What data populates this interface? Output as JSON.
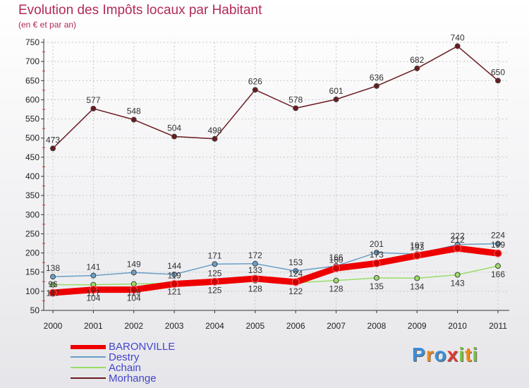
{
  "chart_data": {
    "type": "line",
    "title": "Evolution des Impôts locaux par Habitant",
    "subtitle": "(en € et par an)",
    "categories": [
      "2000",
      "2001",
      "2002",
      "2003",
      "2004",
      "2005",
      "2006",
      "2007",
      "2008",
      "2009",
      "2010",
      "2011"
    ],
    "ylim": [
      50,
      750
    ],
    "yticks": [
      50,
      100,
      150,
      200,
      250,
      300,
      350,
      400,
      450,
      500,
      550,
      600,
      650,
      700,
      750
    ],
    "series": [
      {
        "name": "Morhange",
        "color": "#6b1a1f",
        "values": [
          473,
          577,
          548,
          504,
          498,
          626,
          578,
          601,
          636,
          682,
          740,
          650
        ]
      },
      {
        "name": "Destry",
        "color": "#6a9fc7",
        "values": [
          138,
          141,
          149,
          144,
          171,
          172,
          153,
          166,
          201,
          197,
          222,
          224
        ]
      },
      {
        "name": "Achain",
        "color": "#99dd66",
        "values": [
          117,
          117,
          119,
          121,
          125,
          128,
          122,
          128,
          135,
          134,
          143,
          166
        ]
      },
      {
        "name": "BARONVILLE",
        "color": "#ee0000",
        "values": [
          96,
          104,
          104,
          119,
          125,
          133,
          124,
          160,
          173,
          193,
          212,
          199
        ]
      }
    ],
    "labels": [
      {
        "text": "473",
        "x": "2000",
        "y": 473,
        "pos": "above"
      },
      {
        "text": "577",
        "x": "2001",
        "y": 577,
        "pos": "above"
      },
      {
        "text": "548",
        "x": "2002",
        "y": 548,
        "pos": "above"
      },
      {
        "text": "504",
        "x": "2003",
        "y": 504,
        "pos": "above"
      },
      {
        "text": "498",
        "x": "2004",
        "y": 498,
        "pos": "above"
      },
      {
        "text": "626",
        "x": "2005",
        "y": 626,
        "pos": "above"
      },
      {
        "text": "578",
        "x": "2006",
        "y": 578,
        "pos": "above"
      },
      {
        "text": "601",
        "x": "2007",
        "y": 601,
        "pos": "above"
      },
      {
        "text": "636",
        "x": "2008",
        "y": 636,
        "pos": "above"
      },
      {
        "text": "682",
        "x": "2009",
        "y": 682,
        "pos": "above"
      },
      {
        "text": "740",
        "x": "2010",
        "y": 740,
        "pos": "above"
      },
      {
        "text": "650",
        "x": "2011",
        "y": 650,
        "pos": "above"
      },
      {
        "text": "138",
        "x": "2000",
        "y": 138,
        "pos": "above"
      },
      {
        "text": "141",
        "x": "2001",
        "y": 141,
        "pos": "above"
      },
      {
        "text": "149",
        "x": "2002",
        "y": 149,
        "pos": "above"
      },
      {
        "text": "144",
        "x": "2003",
        "y": 144,
        "pos": "above"
      },
      {
        "text": "171",
        "x": "2004",
        "y": 171,
        "pos": "above"
      },
      {
        "text": "172",
        "x": "2005",
        "y": 172,
        "pos": "above"
      },
      {
        "text": "153",
        "x": "2006",
        "y": 153,
        "pos": "above"
      },
      {
        "text": "166",
        "x": "2007",
        "y": 166,
        "pos": "above"
      },
      {
        "text": "201",
        "x": "2008",
        "y": 201,
        "pos": "above"
      },
      {
        "text": "197",
        "x": "2009",
        "y": 197,
        "pos": "above"
      },
      {
        "text": "222",
        "x": "2010",
        "y": 222,
        "pos": "above"
      },
      {
        "text": "224",
        "x": "2011",
        "y": 224,
        "pos": "above"
      },
      {
        "text": "117",
        "x": "2000",
        "y": 117,
        "pos": "below"
      },
      {
        "text": "117",
        "x": "2001",
        "y": 117,
        "pos": "below"
      },
      {
        "text": "119",
        "x": "2002",
        "y": 119,
        "pos": "below"
      },
      {
        "text": "121",
        "x": "2003",
        "y": 121,
        "pos": "below"
      },
      {
        "text": "125",
        "x": "2004",
        "y": 125,
        "pos": "below"
      },
      {
        "text": "128",
        "x": "2005",
        "y": 128,
        "pos": "below"
      },
      {
        "text": "122",
        "x": "2006",
        "y": 122,
        "pos": "below"
      },
      {
        "text": "128",
        "x": "2007",
        "y": 128,
        "pos": "below"
      },
      {
        "text": "135",
        "x": "2008",
        "y": 135,
        "pos": "below"
      },
      {
        "text": "134",
        "x": "2009",
        "y": 134,
        "pos": "below"
      },
      {
        "text": "143",
        "x": "2010",
        "y": 143,
        "pos": "below"
      },
      {
        "text": "166",
        "x": "2011",
        "y": 166,
        "pos": "below"
      },
      {
        "text": "96",
        "x": "2000",
        "y": 96,
        "pos": "above"
      },
      {
        "text": "104",
        "x": "2001",
        "y": 104,
        "pos": "below"
      },
      {
        "text": "104",
        "x": "2002",
        "y": 104,
        "pos": "below"
      },
      {
        "text": "119",
        "x": "2003",
        "y": 119,
        "pos": "above"
      },
      {
        "text": "125",
        "x": "2004",
        "y": 125,
        "pos": "above"
      },
      {
        "text": "133",
        "x": "2005",
        "y": 133,
        "pos": "above"
      },
      {
        "text": "124",
        "x": "2006",
        "y": 124,
        "pos": "above"
      },
      {
        "text": "160",
        "x": "2007",
        "y": 160,
        "pos": "above"
      },
      {
        "text": "173",
        "x": "2008",
        "y": 173,
        "pos": "above"
      },
      {
        "text": "193",
        "x": "2009",
        "y": 193,
        "pos": "above"
      },
      {
        "text": "212",
        "x": "2010",
        "y": 212,
        "pos": "above"
      },
      {
        "text": "199",
        "x": "2011",
        "y": 199,
        "pos": "above"
      }
    ],
    "legend": [
      "BARONVILLE",
      "Destry",
      "Achain",
      "Morhange"
    ],
    "legend_position": "bottom-left"
  },
  "brand": {
    "letters": [
      {
        "ch": "P",
        "color": "#3a8fd8"
      },
      {
        "ch": "r",
        "color": "#f08a1a"
      },
      {
        "ch": "o",
        "color": "#3a8fd8"
      },
      {
        "ch": "x",
        "color": "#e23b2c"
      },
      {
        "ch": "i",
        "color": "#7ac143"
      },
      {
        "ch": "t",
        "color": "#f08a1a"
      },
      {
        "ch": "i",
        "color": "#7ac143"
      }
    ]
  }
}
